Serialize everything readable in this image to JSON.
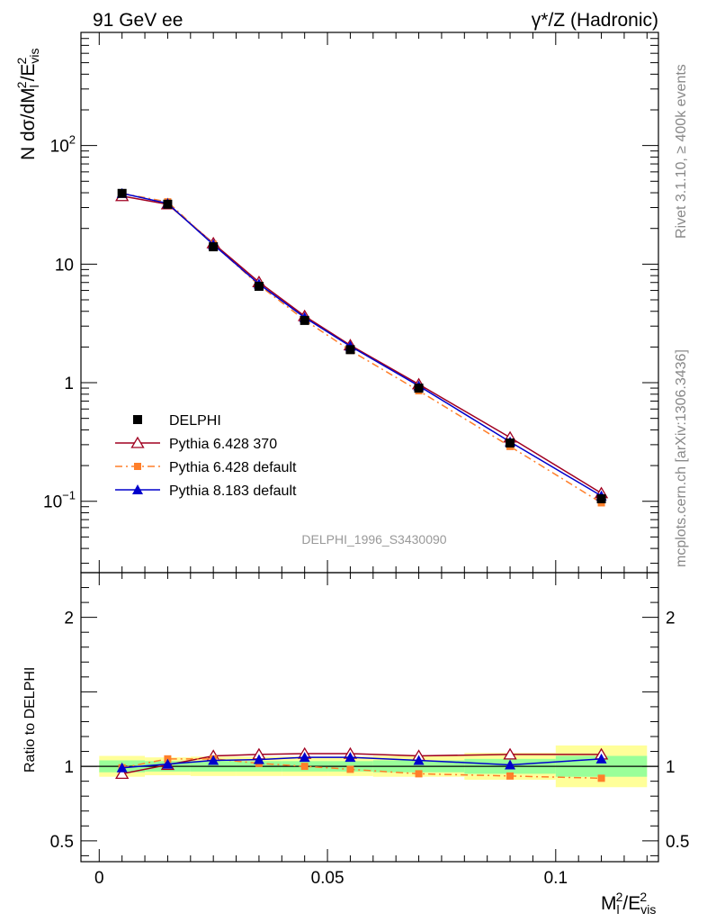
{
  "header": {
    "left_title": "91 GeV ee",
    "right_title": "γ*/Z (Hadronic)"
  },
  "side_labels": {
    "rivet": "Rivet 3.1.10, ≥ 400k events",
    "mcplots": "mcplots.cern.ch [arXiv:1306.3436]"
  },
  "watermark": "DELPHI_1996_S3430090",
  "main_ylabel": {
    "parts": [
      "N dσ/dM",
      "l",
      "2",
      "/E",
      "vis",
      "2"
    ]
  },
  "ratio_ylabel": "Ratio to DELPHI",
  "xlabel": {
    "parts": [
      "M",
      "l",
      "2",
      "/E",
      "vis",
      "2"
    ]
  },
  "colors": {
    "data": "#000000",
    "py6_370": "#a00020",
    "py6_default": "#ff7f2a",
    "py8": "#0000cc",
    "band_inner": "#99ff99",
    "band_outer": "#ffff99"
  },
  "chart_data": [
    {
      "type": "line",
      "title": "91 GeV ee",
      "xlabel": "M_l^2/E_vis^2",
      "ylabel": "N dσ/dM_l^2/E_vis^2",
      "yscale": "log",
      "xlim": [
        -0.004,
        0.1225
      ],
      "ylim": [
        0.025,
        900
      ],
      "x_ticks": [
        {
          "v": 0,
          "label": "0"
        },
        {
          "v": 0.05,
          "label": "0.05"
        },
        {
          "v": 0.1,
          "label": "0.1"
        }
      ],
      "y_ticks": [
        {
          "v": 0.1,
          "base": "10",
          "exp": "−1"
        },
        {
          "v": 1,
          "base": "1",
          "exp": ""
        },
        {
          "v": 10,
          "base": "10",
          "exp": ""
        },
        {
          "v": 100,
          "base": "10",
          "exp": "2"
        }
      ],
      "x": [
        0.005,
        0.015,
        0.025,
        0.035,
        0.045,
        0.055,
        0.07,
        0.09,
        0.11
      ],
      "series": [
        {
          "name": "DELPHI",
          "key": "data",
          "marker": "square",
          "values": [
            39.5,
            32.0,
            14.0,
            6.5,
            3.35,
            1.9,
            0.9,
            0.31,
            0.105
          ]
        },
        {
          "name": "Pythia 6.428 370",
          "key": "py6_370",
          "marker": "triangle-open",
          "line": "solid",
          "values": [
            37.5,
            32.0,
            15.0,
            7.05,
            3.65,
            2.07,
            0.97,
            0.345,
            0.117
          ]
        },
        {
          "name": "Pythia 6.428 default",
          "key": "py6_default",
          "marker": "square-small",
          "line": "dashdot",
          "values": [
            39.5,
            33.5,
            14.7,
            6.65,
            3.38,
            1.87,
            0.855,
            0.29,
            0.097
          ]
        },
        {
          "name": "Pythia 8.183 default",
          "key": "py8",
          "marker": "triangle-filled",
          "line": "solid",
          "values": [
            39.5,
            32.5,
            14.6,
            6.8,
            3.55,
            2.03,
            0.94,
            0.317,
            0.111
          ]
        }
      ]
    },
    {
      "type": "line",
      "title": "",
      "xlabel": "M_l^2/E_vis^2",
      "ylabel": "Ratio to DELPHI",
      "xlim": [
        -0.004,
        0.1225
      ],
      "ylim": [
        0.36,
        2.3
      ],
      "y_ticks": [
        {
          "v": 0.5,
          "label": "0.5"
        },
        {
          "v": 1,
          "label": "1"
        },
        {
          "v": 2,
          "label": "2"
        }
      ],
      "bins": [
        [
          0,
          0.01
        ],
        [
          0.01,
          0.02
        ],
        [
          0.02,
          0.03
        ],
        [
          0.03,
          0.04
        ],
        [
          0.04,
          0.05
        ],
        [
          0.05,
          0.06
        ],
        [
          0.06,
          0.08
        ],
        [
          0.08,
          0.1
        ],
        [
          0.1,
          0.12
        ]
      ],
      "band_inner": [
        0.04,
        0.035,
        0.035,
        0.035,
        0.035,
        0.035,
        0.04,
        0.05,
        0.07
      ],
      "band_outer": [
        0.07,
        0.06,
        0.065,
        0.065,
        0.065,
        0.065,
        0.07,
        0.09,
        0.14
      ],
      "x": [
        0.005,
        0.015,
        0.025,
        0.035,
        0.045,
        0.055,
        0.07,
        0.09,
        0.11
      ],
      "series": [
        {
          "name": "Pythia 6.428 370",
          "key": "py6_370",
          "marker": "triangle-open",
          "line": "solid",
          "values": [
            0.95,
            1.01,
            1.07,
            1.08,
            1.085,
            1.085,
            1.07,
            1.08,
            1.08
          ]
        },
        {
          "name": "Pythia 6.428 default",
          "key": "py6_default",
          "marker": "square-small",
          "line": "dashdot",
          "values": [
            0.99,
            1.05,
            1.05,
            1.02,
            1.0,
            0.98,
            0.95,
            0.935,
            0.92
          ]
        },
        {
          "name": "Pythia 8.183 default",
          "key": "py8",
          "marker": "triangle-filled",
          "line": "solid",
          "values": [
            0.99,
            1.015,
            1.04,
            1.045,
            1.06,
            1.06,
            1.04,
            1.01,
            1.05
          ]
        }
      ]
    }
  ]
}
